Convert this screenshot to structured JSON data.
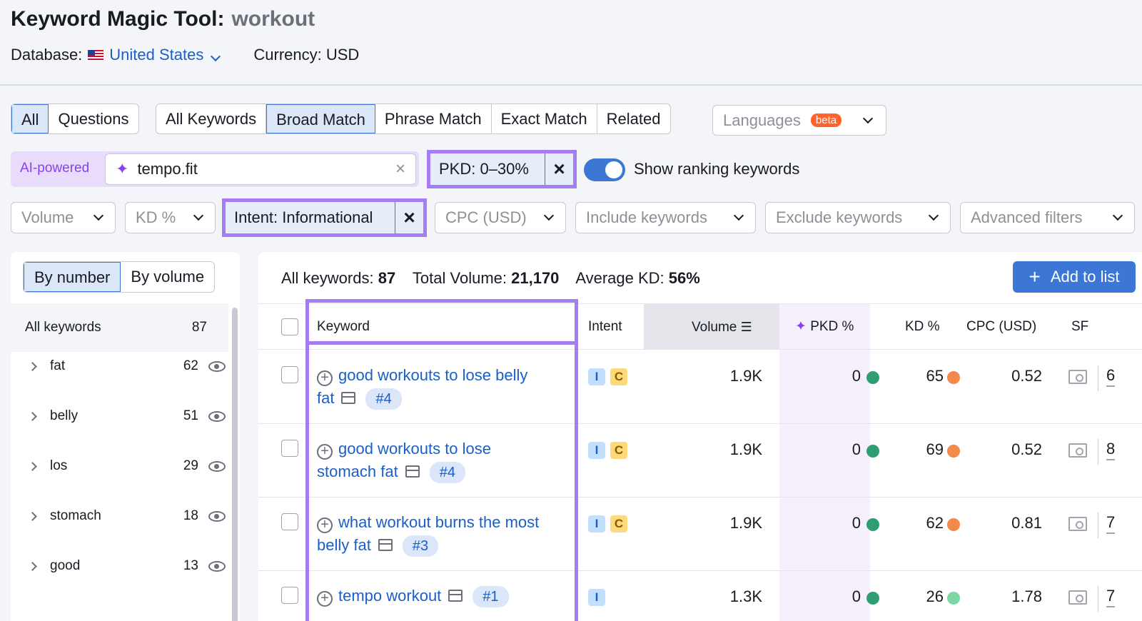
{
  "header": {
    "title": "Keyword Magic Tool:",
    "keyword": "workout",
    "database_label": "Database:",
    "database_value": "United States",
    "currency": "Currency: USD"
  },
  "match_tabs": {
    "group1": [
      "All",
      "Questions"
    ],
    "group2": [
      "All Keywords",
      "Broad Match",
      "Phrase Match",
      "Exact Match",
      "Related"
    ],
    "languages": "Languages",
    "beta": "beta"
  },
  "ai": {
    "label": "AI-powered",
    "input_value": "tempo.fit"
  },
  "filters": {
    "pkd": "PKD: 0–30%",
    "toggle_label": "Show ranking keywords",
    "volume": "Volume",
    "kd": "KD %",
    "intent": "Intent: Informational",
    "cpc": "CPC (USD)",
    "include": "Include keywords",
    "exclude": "Exclude keywords",
    "advanced": "Advanced filters",
    "close_glyph": "×"
  },
  "sidebar": {
    "by_number": "By number",
    "by_volume": "By volume",
    "all_label": "All keywords",
    "all_count": "87",
    "groups": [
      {
        "name": "fat",
        "count": "62"
      },
      {
        "name": "belly",
        "count": "51"
      },
      {
        "name": "los",
        "count": "29"
      },
      {
        "name": "stomach",
        "count": "18"
      },
      {
        "name": "good",
        "count": "13"
      }
    ]
  },
  "stats": {
    "all_label": "All keywords:",
    "all_value": "87",
    "volume_label": "Total Volume:",
    "volume_value": "21,170",
    "kd_label": "Average KD:",
    "kd_value": "56%"
  },
  "add_button": "Add to list",
  "columns": {
    "keyword": "Keyword",
    "intent": "Intent",
    "volume": "Volume",
    "pkd": "PKD %",
    "kd": "KD %",
    "cpc": "CPC (USD)",
    "sf": "SF"
  },
  "rows": [
    {
      "kw1": "good workouts to lose belly",
      "kw2": "fat",
      "rank": "#4",
      "intents": [
        "I",
        "C"
      ],
      "volume": "1.9K",
      "pkd": "0",
      "kd": "65",
      "kd_color": "#f2884a",
      "cpc": "0.52",
      "sf": "6"
    },
    {
      "kw1": "good workouts to lose",
      "kw2": "stomach fat",
      "rank": "#4",
      "intents": [
        "I",
        "C"
      ],
      "volume": "1.9K",
      "pkd": "0",
      "kd": "69",
      "kd_color": "#f2884a",
      "cpc": "0.52",
      "sf": "8"
    },
    {
      "kw1": "what workout burns the most",
      "kw2": "belly fat",
      "rank": "#3",
      "intents": [
        "I",
        "C"
      ],
      "volume": "1.9K",
      "pkd": "0",
      "kd": "62",
      "kd_color": "#f2884a",
      "cpc": "0.81",
      "sf": "7"
    },
    {
      "kw1": "tempo workout",
      "kw2": "",
      "rank": "#1",
      "intents": [
        "I"
      ],
      "volume": "1.3K",
      "pkd": "0",
      "kd": "26",
      "kd_color": "#7fd8a4",
      "cpc": "1.78",
      "sf": "7"
    }
  ],
  "colors": {
    "pkd_dot": "#2f9e72",
    "accent": "#3d77d6",
    "highlight": "#a47cf3"
  }
}
